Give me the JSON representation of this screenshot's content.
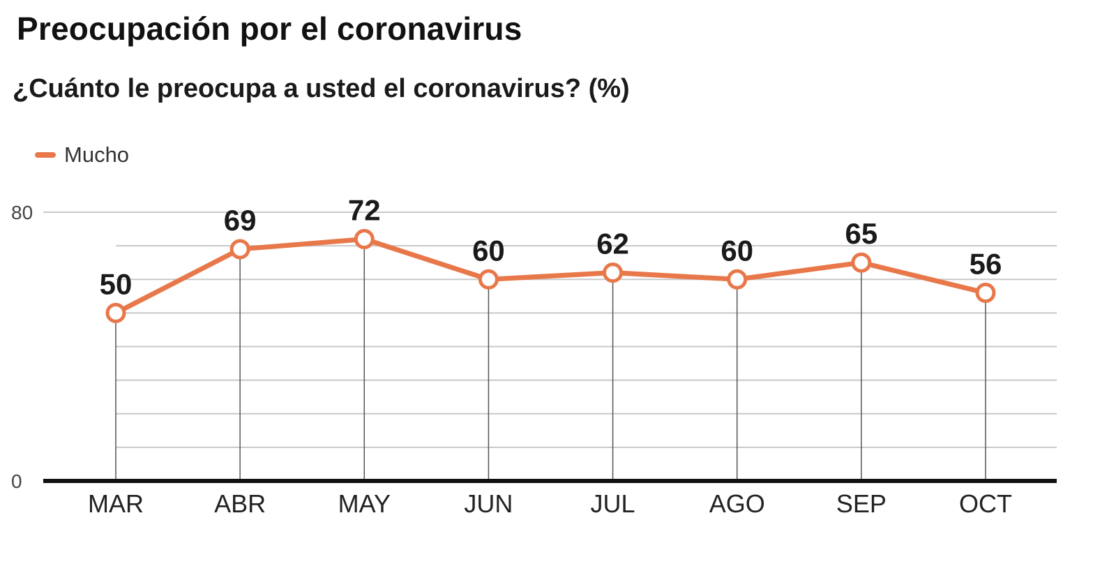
{
  "title": "Preocupación por el coronavirus",
  "subtitle": "¿Cuánto le preocupa a usted el coronavirus? (%)",
  "legend": {
    "label": "Mucho",
    "color": "#e8784a"
  },
  "colors": {
    "line": "#e8784a",
    "grid": "#c8c8c8",
    "axis": "#111111",
    "drop_line": "#555555"
  },
  "chart_data": {
    "type": "line",
    "title": "Preocupación por el coronavirus",
    "subtitle": "¿Cuánto le preocupa a usted el coronavirus? (%)",
    "categories": [
      "MAR",
      "ABR",
      "MAY",
      "JUN",
      "JUL",
      "AGO",
      "SEP",
      "OCT"
    ],
    "series": [
      {
        "name": "Mucho",
        "values": [
          50,
          69,
          72,
          60,
          62,
          60,
          65,
          56
        ]
      }
    ],
    "ylim": [
      0,
      80
    ],
    "y_ticks": [
      "0",
      "80"
    ],
    "y_gridline_step": 10,
    "grid": true,
    "data_labels": true,
    "legend_position": "top-left"
  }
}
